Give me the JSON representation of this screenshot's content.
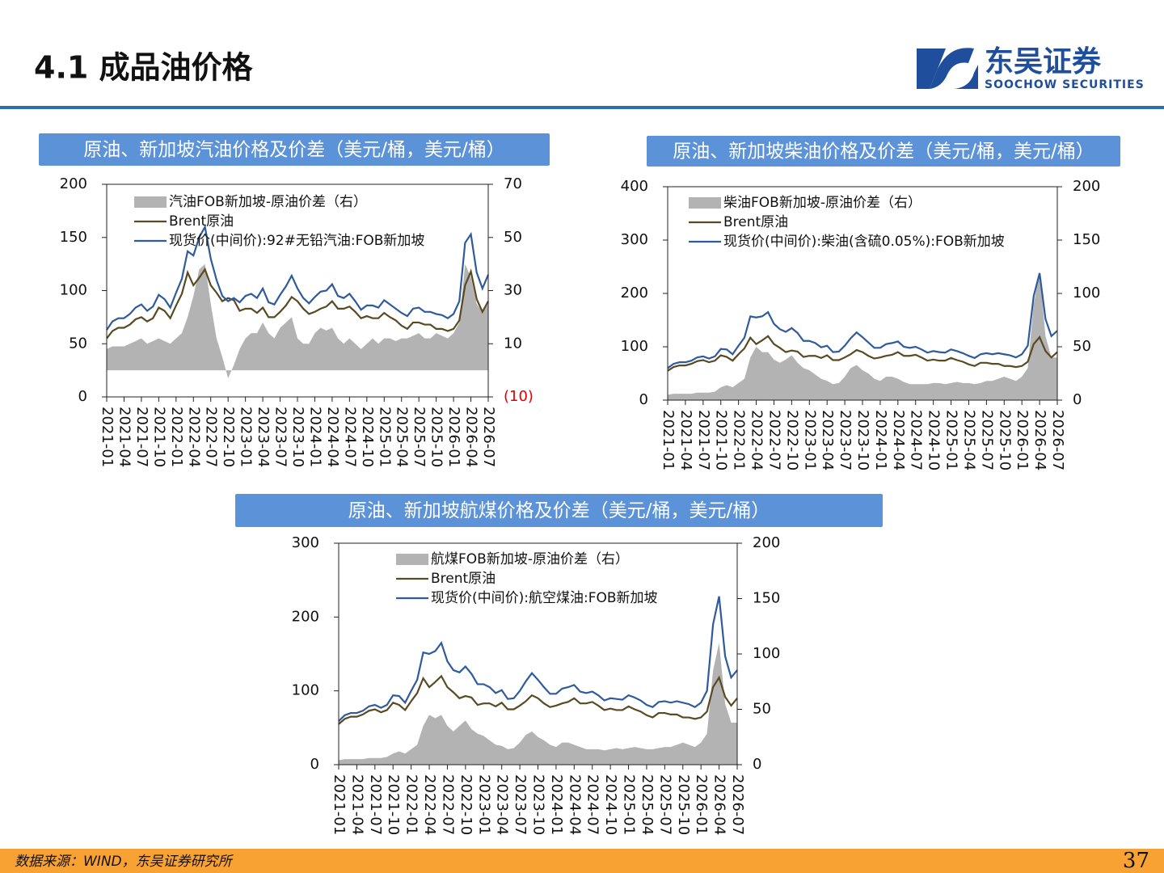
{
  "header": {
    "title": "4.1 成品油价格",
    "logo_cn": "东吴证券",
    "logo_en": "SOOCHOW SECURITIES"
  },
  "footer": {
    "source": "数据来源：WIND，东吴证券研究所",
    "page": 37
  },
  "chart_data": [
    {
      "type": "line",
      "title": "原油、新加坡汽油价格及价差（美元/桶，美元/桶）",
      "x": [
        "2021-01",
        "2021-02",
        "2021-03",
        "2021-04",
        "2021-05",
        "2021-06",
        "2021-07",
        "2021-08",
        "2021-09",
        "2021-10",
        "2021-11",
        "2021-12",
        "2022-01",
        "2022-02",
        "2022-03",
        "2022-04",
        "2022-05",
        "2022-06",
        "2022-07",
        "2022-08",
        "2022-09",
        "2022-10",
        "2022-11",
        "2022-12",
        "2023-01",
        "2023-02",
        "2023-03",
        "2023-04",
        "2023-05",
        "2023-06",
        "2023-07",
        "2023-08",
        "2023-09",
        "2023-10",
        "2023-11",
        "2023-12",
        "2024-01",
        "2024-02",
        "2024-03",
        "2024-04",
        "2024-05",
        "2024-06",
        "2024-07",
        "2024-08",
        "2024-09",
        "2024-10",
        "2024-11",
        "2024-12",
        "2025-01",
        "2025-02",
        "2025-03",
        "2025-04",
        "2025-05",
        "2025-06",
        "2025-07",
        "2025-08",
        "2025-09",
        "2025-10",
        "2025-11",
        "2025-12",
        "2026-01",
        "2026-02",
        "2026-03",
        "2026-04",
        "2026-05",
        "2026-06",
        "2026-07"
      ],
      "xlim": [
        "2021-01",
        "2026-07"
      ],
      "xticks": [
        "2021-01",
        "2021-04",
        "2021-07",
        "2021-10",
        "2022-01",
        "2022-04",
        "2022-07",
        "2022-10",
        "2023-01",
        "2023-04",
        "2023-07",
        "2023-10",
        "2024-01",
        "2024-04",
        "2024-07",
        "2024-10",
        "2025-01",
        "2025-04",
        "2025-07",
        "2025-10",
        "2026-01",
        "2026-04",
        "2026-07"
      ],
      "ylim": [
        0,
        200
      ],
      "yticks": [
        0,
        50,
        100,
        150,
        200
      ],
      "y2lim": [
        -10,
        70
      ],
      "y2ticks": [
        {
          "value": -10,
          "label": "(10)"
        },
        10,
        30,
        50,
        70
      ],
      "y2tick_negative_color": "#e00000",
      "series": [
        {
          "name": "汽油FOB新加坡-原油价差（右）",
          "type": "area",
          "axis": "y2",
          "color": "#b3b3b3",
          "values": [
            8,
            9,
            9,
            9,
            10,
            11,
            12,
            10,
            11,
            12,
            11,
            10,
            12,
            14,
            20,
            28,
            38,
            40,
            25,
            12,
            5,
            -3,
            2,
            8,
            12,
            14,
            14,
            18,
            14,
            12,
            16,
            18,
            20,
            12,
            10,
            10,
            14,
            16,
            15,
            16,
            12,
            10,
            12,
            10,
            8,
            10,
            12,
            10,
            12,
            12,
            11,
            12,
            12,
            13,
            14,
            12,
            12,
            14,
            13,
            12,
            14,
            18,
            40,
            35,
            25,
            22,
            25
          ]
        },
        {
          "name": "Brent原油",
          "type": "line",
          "color": "#5a4a24",
          "values": [
            55,
            62,
            65,
            65,
            68,
            73,
            75,
            71,
            74,
            84,
            81,
            74,
            86,
            97,
            117,
            105,
            112,
            120,
            105,
            98,
            90,
            93,
            91,
            81,
            83,
            83,
            79,
            84,
            75,
            75,
            80,
            86,
            94,
            90,
            83,
            78,
            80,
            83,
            85,
            90,
            83,
            83,
            85,
            80,
            74,
            76,
            74,
            74,
            79,
            75,
            72,
            67,
            64,
            70,
            70,
            68,
            68,
            64,
            64,
            62,
            64,
            72,
            105,
            118,
            92,
            80,
            90
          ]
        },
        {
          "name": "现货价(中间价):92#无铅汽油:FOB新加坡",
          "type": "line",
          "color": "#2f5b9c",
          "values": [
            63,
            71,
            74,
            74,
            78,
            84,
            87,
            81,
            85,
            96,
            92,
            84,
            98,
            111,
            137,
            133,
            150,
            160,
            130,
            110,
            95,
            90,
            93,
            89,
            95,
            97,
            93,
            102,
            89,
            87,
            96,
            104,
            114,
            102,
            93,
            88,
            94,
            99,
            100,
            106,
            95,
            93,
            97,
            90,
            82,
            86,
            86,
            84,
            91,
            87,
            83,
            79,
            76,
            83,
            84,
            80,
            80,
            78,
            77,
            74,
            78,
            90,
            145,
            153,
            117,
            102,
            115
          ]
        }
      ]
    },
    {
      "type": "line",
      "title": "原油、新加坡柴油价格及价差（美元/桶，美元/桶）",
      "x": [
        "2021-01",
        "2021-02",
        "2021-03",
        "2021-04",
        "2021-05",
        "2021-06",
        "2021-07",
        "2021-08",
        "2021-09",
        "2021-10",
        "2021-11",
        "2021-12",
        "2022-01",
        "2022-02",
        "2022-03",
        "2022-04",
        "2022-05",
        "2022-06",
        "2022-07",
        "2022-08",
        "2022-09",
        "2022-10",
        "2022-11",
        "2022-12",
        "2023-01",
        "2023-02",
        "2023-03",
        "2023-04",
        "2023-05",
        "2023-06",
        "2023-07",
        "2023-08",
        "2023-09",
        "2023-10",
        "2023-11",
        "2023-12",
        "2024-01",
        "2024-02",
        "2024-03",
        "2024-04",
        "2024-05",
        "2024-06",
        "2024-07",
        "2024-08",
        "2024-09",
        "2024-10",
        "2024-11",
        "2024-12",
        "2025-01",
        "2025-02",
        "2025-03",
        "2025-04",
        "2025-05",
        "2025-06",
        "2025-07",
        "2025-08",
        "2025-09",
        "2025-10",
        "2025-11",
        "2025-12",
        "2026-01",
        "2026-02",
        "2026-03",
        "2026-04",
        "2026-05",
        "2026-06",
        "2026-07"
      ],
      "xlim": [
        "2021-01",
        "2026-07"
      ],
      "xticks": [
        "2021-01",
        "2021-04",
        "2021-07",
        "2021-10",
        "2022-01",
        "2022-04",
        "2022-07",
        "2022-10",
        "2023-01",
        "2023-04",
        "2023-07",
        "2023-10",
        "2024-01",
        "2024-04",
        "2024-07",
        "2024-10",
        "2025-01",
        "2025-04",
        "2025-07",
        "2025-10",
        "2026-01",
        "2026-04",
        "2026-07"
      ],
      "ylim": [
        0,
        400
      ],
      "yticks": [
        0,
        100,
        200,
        300,
        400
      ],
      "y2lim": [
        0,
        200
      ],
      "y2ticks": [
        0,
        50,
        100,
        150,
        200
      ],
      "series": [
        {
          "name": "柴油FOB新加坡-原油价差（右）",
          "type": "area",
          "axis": "y2",
          "color": "#b3b3b3",
          "values": [
            5,
            6,
            6,
            6,
            6,
            7,
            7,
            7,
            8,
            12,
            14,
            12,
            16,
            20,
            40,
            50,
            45,
            45,
            38,
            35,
            38,
            42,
            35,
            30,
            28,
            24,
            20,
            18,
            15,
            16,
            22,
            30,
            33,
            28,
            25,
            20,
            18,
            22,
            22,
            20,
            17,
            15,
            15,
            15,
            15,
            16,
            16,
            15,
            16,
            17,
            16,
            16,
            15,
            16,
            18,
            18,
            20,
            22,
            20,
            18,
            22,
            30,
            90,
            120,
            60,
            40,
            40
          ]
        },
        {
          "name": "Brent原油",
          "type": "line",
          "color": "#5a4a24",
          "values": [
            55,
            62,
            65,
            65,
            68,
            73,
            75,
            71,
            74,
            84,
            81,
            74,
            86,
            97,
            117,
            105,
            112,
            120,
            105,
            98,
            90,
            93,
            91,
            81,
            83,
            83,
            79,
            84,
            75,
            75,
            80,
            86,
            94,
            90,
            83,
            78,
            80,
            83,
            85,
            90,
            83,
            83,
            85,
            80,
            74,
            76,
            74,
            74,
            79,
            75,
            72,
            67,
            64,
            70,
            70,
            68,
            68,
            64,
            64,
            62,
            64,
            72,
            105,
            118,
            92,
            80,
            90
          ]
        },
        {
          "name": "现货价(中间价):柴油(含硫0.05%):FOB新加坡",
          "type": "line",
          "color": "#2f5b9c",
          "values": [
            60,
            68,
            71,
            71,
            74,
            80,
            82,
            78,
            82,
            96,
            95,
            86,
            102,
            117,
            157,
            155,
            157,
            165,
            143,
            133,
            128,
            135,
            126,
            111,
            111,
            107,
            99,
            102,
            90,
            91,
            102,
            116,
            127,
            118,
            108,
            98,
            98,
            105,
            107,
            110,
            100,
            98,
            100,
            95,
            89,
            92,
            90,
            89,
            95,
            92,
            88,
            83,
            79,
            86,
            88,
            86,
            88,
            86,
            84,
            80,
            86,
            102,
            195,
            238,
            152,
            120,
            130
          ]
        }
      ]
    },
    {
      "type": "line",
      "title": "原油、新加坡航煤价格及价差（美元/桶，美元/桶）",
      "x": [
        "2021-01",
        "2021-02",
        "2021-03",
        "2021-04",
        "2021-05",
        "2021-06",
        "2021-07",
        "2021-08",
        "2021-09",
        "2021-10",
        "2021-11",
        "2021-12",
        "2022-01",
        "2022-02",
        "2022-03",
        "2022-04",
        "2022-05",
        "2022-06",
        "2022-07",
        "2022-08",
        "2022-09",
        "2022-10",
        "2022-11",
        "2022-12",
        "2023-01",
        "2023-02",
        "2023-03",
        "2023-04",
        "2023-05",
        "2023-06",
        "2023-07",
        "2023-08",
        "2023-09",
        "2023-10",
        "2023-11",
        "2023-12",
        "2024-01",
        "2024-02",
        "2024-03",
        "2024-04",
        "2024-05",
        "2024-06",
        "2024-07",
        "2024-08",
        "2024-09",
        "2024-10",
        "2024-11",
        "2024-12",
        "2025-01",
        "2025-02",
        "2025-03",
        "2025-04",
        "2025-05",
        "2025-06",
        "2025-07",
        "2025-08",
        "2025-09",
        "2025-10",
        "2025-11",
        "2025-12",
        "2026-01",
        "2026-02",
        "2026-03",
        "2026-04",
        "2026-05",
        "2026-06",
        "2026-07"
      ],
      "xlim": [
        "2021-01",
        "2026-07"
      ],
      "xticks": [
        "2021-01",
        "2021-04",
        "2021-07",
        "2021-10",
        "2022-01",
        "2022-04",
        "2022-07",
        "2022-10",
        "2023-01",
        "2023-04",
        "2023-07",
        "2023-10",
        "2024-01",
        "2024-04",
        "2024-07",
        "2024-10",
        "2025-01",
        "2025-04",
        "2025-07",
        "2025-10",
        "2026-01",
        "2026-04",
        "2026-07"
      ],
      "ylim": [
        0,
        300
      ],
      "yticks": [
        0,
        100,
        200,
        300
      ],
      "y2lim": [
        0,
        200
      ],
      "y2ticks": [
        0,
        50,
        100,
        150,
        200
      ],
      "series": [
        {
          "name": "航煤FOB新加坡-原油价差（右）",
          "type": "area",
          "axis": "y2",
          "color": "#b3b3b3",
          "values": [
            4,
            5,
            5,
            5,
            5,
            6,
            6,
            6,
            7,
            10,
            12,
            10,
            14,
            18,
            35,
            45,
            42,
            45,
            35,
            30,
            35,
            40,
            32,
            28,
            26,
            22,
            18,
            17,
            14,
            15,
            20,
            27,
            30,
            25,
            22,
            18,
            16,
            20,
            20,
            18,
            16,
            14,
            14,
            14,
            13,
            14,
            15,
            14,
            15,
            16,
            15,
            14,
            14,
            15,
            16,
            16,
            18,
            20,
            18,
            16,
            20,
            28,
            85,
            110,
            55,
            38,
            38
          ]
        },
        {
          "name": "Brent原油",
          "type": "line",
          "color": "#5a4a24",
          "values": [
            55,
            62,
            65,
            65,
            68,
            73,
            75,
            71,
            74,
            84,
            81,
            74,
            86,
            97,
            117,
            105,
            112,
            120,
            105,
            98,
            90,
            93,
            91,
            81,
            83,
            83,
            79,
            84,
            75,
            75,
            80,
            86,
            94,
            90,
            83,
            78,
            80,
            83,
            85,
            90,
            83,
            83,
            85,
            80,
            74,
            76,
            74,
            74,
            79,
            75,
            72,
            67,
            64,
            70,
            70,
            68,
            68,
            64,
            64,
            62,
            64,
            72,
            105,
            118,
            92,
            80,
            90
          ]
        },
        {
          "name": "现货价(中间价):航空煤油:FOB新加坡",
          "type": "line",
          "color": "#2f5b9c",
          "values": [
            59,
            67,
            70,
            70,
            73,
            79,
            81,
            77,
            81,
            94,
            93,
            84,
            100,
            115,
            152,
            150,
            154,
            165,
            140,
            128,
            125,
            133,
            123,
            109,
            109,
            105,
            97,
            101,
            89,
            90,
            100,
            113,
            124,
            115,
            105,
            96,
            96,
            103,
            105,
            108,
            99,
            97,
            99,
            94,
            87,
            90,
            89,
            88,
            94,
            91,
            87,
            81,
            78,
            85,
            86,
            84,
            86,
            84,
            82,
            78,
            84,
            100,
            190,
            228,
            147,
            118,
            128
          ]
        }
      ]
    }
  ]
}
